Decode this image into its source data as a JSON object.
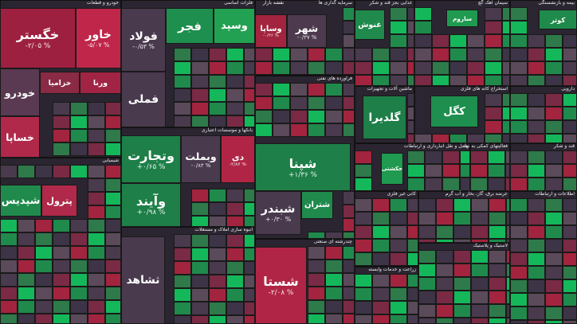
{
  "title": "نقشه بازار",
  "sectors": [
    {
      "name": "خودرو و قطعات",
      "tiles": [
        {
          "label": "خگستر",
          "change": "-۲/۰۵ %",
          "color": "#9e2040"
        },
        {
          "label": "خاور",
          "change": "-۵/۰۷ %",
          "color": "#c0264a"
        },
        {
          "label": "خودرو",
          "color": "#5a3a52"
        },
        {
          "label": "خساپا",
          "color": "#b0294a"
        },
        {
          "label": "خزامیا",
          "color": "#8a2a44"
        },
        {
          "label": "ورنا",
          "color": "#a12444"
        }
      ]
    },
    {
      "name": "فلزات اساسی",
      "tiles": [
        {
          "label": "فولاد",
          "change": "-۰/۵۳ %",
          "color": "#4a3a4e"
        },
        {
          "label": "فملی",
          "color": "#4a3a4e"
        },
        {
          "label": "فجر",
          "color": "#1e8f4e"
        },
        {
          "label": "وسپد",
          "color": "#23a152"
        }
      ]
    },
    {
      "name": "سرمایه گذاری ها",
      "tiles": [
        {
          "label": "وساپا",
          "change": "-۰/۲۶ %",
          "color": "#a3243e"
        },
        {
          "label": "شهر",
          "change": "-۰/۳۷ %",
          "color": "#4d3a4e"
        }
      ]
    },
    {
      "name": "غذایی بجز قند و شکر",
      "tiles": [
        {
          "label": "غنوش",
          "color": "#1f8a4c"
        }
      ]
    },
    {
      "name": "سیمان آهک گچ",
      "tiles": [
        {
          "label": "ساروم",
          "color": "#1f9a50"
        }
      ]
    },
    {
      "name": "بیمه و بازنشستگی",
      "tiles": [
        {
          "label": "کوثر",
          "color": "#1f8a4c"
        }
      ]
    },
    {
      "name": "بانکها و موسسات اعتباری",
      "tiles": [
        {
          "label": "وتجارت",
          "change": "+۰/۶۵ %",
          "color": "#1e7f48"
        },
        {
          "label": "وبملت",
          "change": "-۰/۸۳ %",
          "color": "#4a3a4e"
        },
        {
          "label": "دی",
          "change": "-۲/۸۶ %",
          "color": "#b02545"
        },
        {
          "label": "وآیند",
          "change": "+۰/۹۸ %",
          "color": "#1e7f48"
        }
      ]
    },
    {
      "name": "فراورده های نفتی",
      "tiles": [
        {
          "label": "شپنا",
          "change": "+۱/۳۶ %",
          "color": "#1e7f48"
        },
        {
          "label": "شبندر",
          "change": "+۰/۳۰ %",
          "color": "#4a3a4e"
        },
        {
          "label": "شتران",
          "color": "#1f8a4c"
        }
      ]
    },
    {
      "name": "شیمیایی",
      "tiles": [
        {
          "label": "شپدیس",
          "color": "#1f8a4c"
        },
        {
          "label": "پترول",
          "color": "#b0294a"
        }
      ]
    },
    {
      "name": "انبوه سازی املاک و مستغلات",
      "tiles": [
        {
          "label": "ثشاهد",
          "color": "#4a3a4e"
        }
      ]
    },
    {
      "name": "چندرشته ای صنعتی",
      "tiles": [
        {
          "label": "شستا",
          "change": "-۲/۰۸ %",
          "color": "#b02545"
        }
      ]
    },
    {
      "name": "ماشین آلات و تجهیزات",
      "tiles": [
        {
          "label": "گلدیرا",
          "color": "#1e7f48"
        }
      ]
    },
    {
      "name": "استخراج کانه های فلزی",
      "tiles": [
        {
          "label": "کگل",
          "color": "#1e8f4e"
        }
      ]
    },
    {
      "name": "دارویی",
      "tiles": []
    },
    {
      "name": "حمل و نقل انبارداری و ارتباطات",
      "tiles": [
        {
          "label": "حکشتی",
          "color": "#1f9a50"
        }
      ]
    },
    {
      "name": "فعالیتهای کمکی به نهاد",
      "tiles": []
    },
    {
      "name": "قند و شکر",
      "tiles": []
    },
    {
      "name": "کانی غیر فلزی",
      "tiles": []
    },
    {
      "name": "عرضه برق، گاز، بخار و آب گرم",
      "tiles": []
    },
    {
      "name": "اطلاعات و ارتباطات",
      "tiles": []
    },
    {
      "name": "زراعت و خدمات وابسته",
      "tiles": []
    },
    {
      "name": "لاستیک و پلاستیک",
      "tiles": []
    }
  ]
}
